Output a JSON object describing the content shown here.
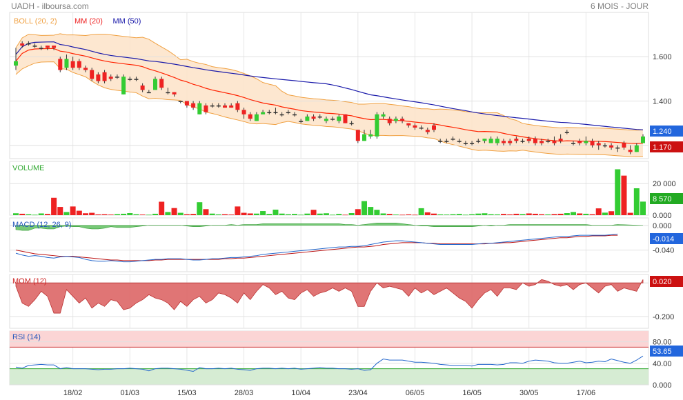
{
  "header": {
    "left": "UADH - ilboursa.com",
    "right": "6 MOIS - JOUR"
  },
  "colors": {
    "up": "#33cc33",
    "down": "#ee2222",
    "mm20": "#ff2200",
    "mm50": "#1a1aaa",
    "boll": "#f0a040",
    "bollFill": "#fde3c8",
    "macd": "#2266cc",
    "signal": "#bb1111",
    "histo": "#55bb55",
    "mom": "#dd6666",
    "rsi": "#2266cc"
  },
  "chart_data": [
    {
      "type": "candlestick",
      "panel": "price",
      "legend": [
        {
          "label": "BOLL (20, 2)",
          "color": "#f0a040"
        },
        {
          "label": "MM (20)",
          "color": "#ee2222"
        },
        {
          "label": "MM (50)",
          "color": "#1a1aaa"
        }
      ],
      "y_ticks": [
        "1.600",
        "1.400",
        "1.200"
      ],
      "y_tick_values": [
        1.6,
        1.4,
        1.2
      ],
      "ylim": [
        1.14,
        1.8
      ],
      "last_up_label": "1.240",
      "last_down_label": "1.170",
      "last_up_value": 1.24,
      "last_down_value": 1.17,
      "x_ticks": [
        "18/02",
        "01/03",
        "15/03",
        "28/03",
        "10/04",
        "23/04",
        "06/05",
        "16/05",
        "30/05",
        "17/06"
      ],
      "x_tick_index": [
        9,
        18,
        27,
        36,
        45,
        54,
        63,
        72,
        81,
        90
      ]
    },
    {
      "type": "bar",
      "panel": "volume",
      "legend": [
        {
          "label": "VOLUME",
          "color": "#33aa33"
        }
      ],
      "y_ticks": [
        "20 000",
        "0.000"
      ],
      "y_tick_values": [
        20000,
        0
      ],
      "ylim": [
        0,
        34000
      ],
      "last_label": "8 570",
      "last_value": 8570
    },
    {
      "type": "line",
      "panel": "macd",
      "legend": [
        {
          "label": "MACD (12, 26, 9)",
          "color": "#2255bb"
        }
      ],
      "y_ticks": [
        "0.000",
        "-0.040"
      ],
      "y_tick_values": [
        0,
        -0.04
      ],
      "ylim": [
        -0.075,
        0.012
      ],
      "last_label": "-0.014",
      "last_value": -0.014
    },
    {
      "type": "area",
      "panel": "momentum",
      "legend": [
        {
          "label": "MOM (12)",
          "color": "#cc2222"
        }
      ],
      "y_ticks": [
        "0.000",
        "-0.200"
      ],
      "y_tick_values": [
        0,
        -0.2
      ],
      "ylim": [
        -0.27,
        0.05
      ],
      "last_label": "0.020",
      "last_value": 0.02
    },
    {
      "type": "line",
      "panel": "rsi",
      "legend": [
        {
          "label": "RSI (14)",
          "color": "#2255bb"
        }
      ],
      "y_ticks": [
        "80.00",
        "40.00",
        "0.000"
      ],
      "y_tick_values": [
        80,
        40,
        0
      ],
      "ylim": [
        0,
        100
      ],
      "bands": {
        "overbought": 70,
        "oversold": 30
      },
      "last_label": "53.65",
      "last_value": 53.65
    }
  ],
  "series": {
    "candles": [
      [
        1.56,
        1.58,
        1.64,
        1.54
      ],
      [
        1.66,
        1.65,
        1.67,
        1.64
      ],
      [
        1.66,
        1.66,
        1.67,
        1.65
      ],
      [
        1.65,
        1.65,
        1.66,
        1.64
      ],
      [
        1.64,
        1.64,
        1.65,
        1.63
      ],
      [
        1.65,
        1.64,
        1.65,
        1.63
      ],
      [
        1.65,
        1.64,
        1.65,
        1.63
      ],
      [
        1.59,
        1.54,
        1.6,
        1.53
      ],
      [
        1.55,
        1.59,
        1.61,
        1.54
      ],
      [
        1.58,
        1.55,
        1.6,
        1.54
      ],
      [
        1.58,
        1.55,
        1.59,
        1.54
      ],
      [
        1.55,
        1.54,
        1.56,
        1.53
      ],
      [
        1.54,
        1.5,
        1.55,
        1.49
      ],
      [
        1.52,
        1.49,
        1.53,
        1.48
      ],
      [
        1.53,
        1.49,
        1.54,
        1.48
      ],
      [
        1.51,
        1.5,
        1.52,
        1.49
      ],
      [
        1.51,
        1.51,
        1.52,
        1.5
      ],
      [
        1.43,
        1.51,
        1.52,
        1.43
      ],
      [
        1.5,
        1.5,
        1.51,
        1.49
      ],
      [
        1.5,
        1.5,
        1.51,
        1.49
      ],
      [
        1.47,
        1.45,
        1.48,
        1.44
      ],
      [
        1.44,
        1.44,
        1.45,
        1.44
      ],
      [
        1.45,
        1.5,
        1.51,
        1.45
      ],
      [
        1.5,
        1.46,
        1.51,
        1.45
      ],
      [
        1.44,
        1.44,
        1.46,
        1.43
      ],
      [
        1.44,
        1.43,
        1.44,
        1.42
      ],
      [
        1.4,
        1.4,
        1.4,
        1.39
      ],
      [
        1.4,
        1.38,
        1.4,
        1.37
      ],
      [
        1.39,
        1.37,
        1.4,
        1.36
      ],
      [
        1.34,
        1.39,
        1.4,
        1.34
      ],
      [
        1.38,
        1.35,
        1.39,
        1.34
      ],
      [
        1.38,
        1.38,
        1.39,
        1.37
      ],
      [
        1.38,
        1.38,
        1.39,
        1.37
      ],
      [
        1.38,
        1.37,
        1.39,
        1.37
      ],
      [
        1.38,
        1.37,
        1.39,
        1.37
      ],
      [
        1.39,
        1.36,
        1.4,
        1.35
      ],
      [
        1.36,
        1.34,
        1.37,
        1.32
      ],
      [
        1.34,
        1.32,
        1.35,
        1.31
      ],
      [
        1.31,
        1.34,
        1.35,
        1.31
      ],
      [
        1.34,
        1.35,
        1.36,
        1.34
      ],
      [
        1.35,
        1.35,
        1.36,
        1.34
      ],
      [
        1.35,
        1.35,
        1.37,
        1.34
      ],
      [
        1.34,
        1.34,
        1.35,
        1.33
      ],
      [
        1.35,
        1.35,
        1.36,
        1.34
      ],
      [
        1.34,
        1.34,
        1.35,
        1.33
      ],
      [
        1.31,
        1.31,
        1.32,
        1.3
      ],
      [
        1.31,
        1.33,
        1.34,
        1.31
      ],
      [
        1.33,
        1.32,
        1.34,
        1.31
      ],
      [
        1.33,
        1.33,
        1.34,
        1.32
      ],
      [
        1.31,
        1.32,
        1.33,
        1.3
      ],
      [
        1.32,
        1.32,
        1.33,
        1.31
      ],
      [
        1.31,
        1.33,
        1.34,
        1.3
      ],
      [
        1.34,
        1.3,
        1.34,
        1.3
      ],
      [
        1.3,
        1.3,
        1.31,
        1.29
      ],
      [
        1.27,
        1.22,
        1.27,
        1.21
      ],
      [
        1.22,
        1.25,
        1.27,
        1.22
      ],
      [
        1.24,
        1.25,
        1.27,
        1.23
      ],
      [
        1.24,
        1.34,
        1.35,
        1.23
      ],
      [
        1.33,
        1.34,
        1.35,
        1.32
      ],
      [
        1.32,
        1.3,
        1.33,
        1.29
      ],
      [
        1.31,
        1.32,
        1.33,
        1.3
      ],
      [
        1.32,
        1.31,
        1.33,
        1.3
      ],
      [
        1.3,
        1.29,
        1.3,
        1.28
      ],
      [
        1.29,
        1.28,
        1.3,
        1.27
      ],
      [
        1.28,
        1.28,
        1.29,
        1.27
      ],
      [
        1.27,
        1.26,
        1.28,
        1.25
      ],
      [
        1.29,
        1.27,
        1.3,
        1.26
      ],
      [
        1.22,
        1.22,
        1.23,
        1.21
      ],
      [
        1.22,
        1.22,
        1.23,
        1.21
      ],
      [
        1.23,
        1.23,
        1.24,
        1.22
      ],
      [
        1.22,
        1.22,
        1.23,
        1.21
      ],
      [
        1.21,
        1.21,
        1.22,
        1.2
      ],
      [
        1.21,
        1.21,
        1.22,
        1.2
      ],
      [
        1.22,
        1.22,
        1.23,
        1.21
      ],
      [
        1.22,
        1.23,
        1.23,
        1.21
      ],
      [
        1.21,
        1.23,
        1.24,
        1.21
      ],
      [
        1.21,
        1.23,
        1.24,
        1.2
      ],
      [
        1.22,
        1.21,
        1.23,
        1.2
      ],
      [
        1.22,
        1.21,
        1.23,
        1.2
      ],
      [
        1.23,
        1.22,
        1.24,
        1.21
      ],
      [
        1.22,
        1.22,
        1.23,
        1.21
      ],
      [
        1.23,
        1.22,
        1.24,
        1.21
      ],
      [
        1.23,
        1.21,
        1.24,
        1.2
      ],
      [
        1.22,
        1.21,
        1.23,
        1.2
      ],
      [
        1.22,
        1.22,
        1.23,
        1.21
      ],
      [
        1.22,
        1.21,
        1.24,
        1.2
      ],
      [
        1.23,
        1.22,
        1.25,
        1.21
      ],
      [
        1.26,
        1.26,
        1.27,
        1.25
      ],
      [
        1.21,
        1.21,
        1.22,
        1.2
      ],
      [
        1.22,
        1.21,
        1.23,
        1.2
      ],
      [
        1.21,
        1.22,
        1.24,
        1.2
      ],
      [
        1.22,
        1.2,
        1.23,
        1.19
      ],
      [
        1.21,
        1.2,
        1.22,
        1.18
      ],
      [
        1.2,
        1.2,
        1.21,
        1.19
      ],
      [
        1.2,
        1.19,
        1.21,
        1.18
      ],
      [
        1.19,
        1.19,
        1.2,
        1.17
      ],
      [
        1.21,
        1.19,
        1.22,
        1.18
      ],
      [
        1.18,
        1.17,
        1.2,
        1.16
      ],
      [
        1.17,
        1.2,
        1.21,
        1.17
      ],
      [
        1.21,
        1.24,
        1.25,
        1.21
      ]
    ],
    "volume": [
      1200,
      900,
      600,
      300,
      1100,
      800,
      11000,
      5200,
      2000,
      5500,
      2800,
      1200,
      1500,
      500,
      600,
      400,
      700,
      900,
      1300,
      600,
      400,
      300,
      900,
      8500,
      2000,
      4500,
      1500,
      600,
      800,
      8200,
      3800,
      1000,
      500,
      600,
      400,
      5500,
      1500,
      1100,
      1000,
      2600,
      800,
      3500,
      1000,
      600,
      800,
      300,
      1000,
      3400,
      1000,
      1200,
      300,
      800,
      300,
      1300,
      3800,
      8900,
      5200,
      3400,
      1100,
      800,
      400,
      300,
      500,
      300,
      4400,
      1800,
      1000,
      500,
      400,
      600,
      800,
      300,
      600,
      1000,
      1200,
      600,
      500,
      800,
      500,
      900,
      700,
      1100,
      900,
      600,
      500,
      700,
      900,
      1300,
      2000,
      1100,
      900,
      600,
      4300,
      1600,
      2500,
      29000,
      25000,
      1500,
      17000,
      8570
    ],
    "macd": [
      -0.045,
      -0.048,
      -0.05,
      -0.049,
      -0.05,
      -0.052,
      -0.053,
      -0.051,
      -0.05,
      -0.051,
      -0.052,
      -0.055,
      -0.057,
      -0.058,
      -0.058,
      -0.057,
      -0.058,
      -0.059,
      -0.059,
      -0.058,
      -0.057,
      -0.056,
      -0.055,
      -0.055,
      -0.054,
      -0.054,
      -0.054,
      -0.055,
      -0.056,
      -0.056,
      -0.055,
      -0.054,
      -0.054,
      -0.053,
      -0.052,
      -0.052,
      -0.051,
      -0.05,
      -0.049,
      -0.047,
      -0.046,
      -0.045,
      -0.044,
      -0.043,
      -0.042,
      -0.041,
      -0.04,
      -0.039,
      -0.038,
      -0.037,
      -0.036,
      -0.035,
      -0.035,
      -0.034,
      -0.034,
      -0.033,
      -0.031,
      -0.029,
      -0.027,
      -0.026,
      -0.025,
      -0.025,
      -0.026,
      -0.027,
      -0.028,
      -0.029,
      -0.03,
      -0.031,
      -0.031,
      -0.031,
      -0.031,
      -0.031,
      -0.031,
      -0.03,
      -0.029,
      -0.029,
      -0.028,
      -0.027,
      -0.026,
      -0.025,
      -0.024,
      -0.023,
      -0.022,
      -0.021,
      -0.02,
      -0.019,
      -0.018,
      -0.018,
      -0.017,
      -0.016,
      -0.016,
      -0.016,
      -0.016,
      -0.016,
      -0.015,
      -0.014
    ],
    "signal": [
      -0.04,
      -0.042,
      -0.044,
      -0.046,
      -0.047,
      -0.048,
      -0.049,
      -0.05,
      -0.05,
      -0.05,
      -0.051,
      -0.052,
      -0.053,
      -0.054,
      -0.055,
      -0.056,
      -0.056,
      -0.057,
      -0.057,
      -0.057,
      -0.057,
      -0.057,
      -0.056,
      -0.056,
      -0.055,
      -0.055,
      -0.055,
      -0.055,
      -0.055,
      -0.055,
      -0.055,
      -0.055,
      -0.055,
      -0.054,
      -0.054,
      -0.053,
      -0.053,
      -0.052,
      -0.051,
      -0.05,
      -0.049,
      -0.048,
      -0.047,
      -0.046,
      -0.045,
      -0.044,
      -0.043,
      -0.042,
      -0.041,
      -0.04,
      -0.039,
      -0.038,
      -0.037,
      -0.036,
      -0.035,
      -0.035,
      -0.034,
      -0.033,
      -0.031,
      -0.03,
      -0.029,
      -0.028,
      -0.028,
      -0.028,
      -0.028,
      -0.029,
      -0.029,
      -0.03,
      -0.03,
      -0.03,
      -0.03,
      -0.03,
      -0.03,
      -0.03,
      -0.03,
      -0.029,
      -0.029,
      -0.028,
      -0.028,
      -0.027,
      -0.026,
      -0.025,
      -0.024,
      -0.023,
      -0.022,
      -0.021,
      -0.02,
      -0.02,
      -0.019,
      -0.018,
      -0.018,
      -0.017,
      -0.017,
      -0.017,
      -0.016,
      -0.016
    ],
    "mom": [
      -0.02,
      -0.12,
      -0.14,
      -0.1,
      -0.05,
      -0.08,
      -0.18,
      -0.18,
      -0.04,
      -0.08,
      -0.12,
      -0.09,
      -0.15,
      -0.12,
      -0.14,
      -0.1,
      -0.11,
      -0.16,
      -0.15,
      -0.12,
      -0.1,
      -0.07,
      -0.09,
      -0.1,
      -0.12,
      -0.16,
      -0.11,
      -0.14,
      -0.1,
      -0.08,
      -0.12,
      -0.1,
      -0.06,
      -0.07,
      -0.09,
      -0.12,
      -0.06,
      -0.1,
      -0.05,
      -0.01,
      -0.03,
      -0.07,
      -0.05,
      -0.09,
      -0.1,
      -0.06,
      -0.04,
      -0.08,
      -0.06,
      -0.05,
      -0.03,
      -0.05,
      -0.03,
      -0.05,
      -0.14,
      -0.14,
      -0.05,
      0.0,
      -0.03,
      -0.02,
      -0.03,
      -0.04,
      -0.08,
      -0.03,
      -0.06,
      -0.04,
      -0.07,
      -0.05,
      -0.03,
      -0.06,
      -0.09,
      -0.11,
      -0.15,
      -0.1,
      -0.06,
      -0.04,
      -0.08,
      -0.03,
      -0.03,
      -0.04,
      0.0,
      -0.02,
      -0.01,
      0.02,
      0.01,
      -0.01,
      -0.02,
      -0.01,
      -0.04,
      -0.01,
      0.0,
      -0.03,
      -0.06,
      -0.02,
      -0.01,
      -0.05,
      -0.03,
      -0.04,
      -0.05,
      0.02
    ],
    "rsi": [
      33,
      31,
      36,
      37,
      38,
      37,
      37,
      30,
      32,
      30,
      30,
      30,
      29,
      28,
      29,
      29,
      30,
      30,
      31,
      30,
      29,
      26,
      30,
      31,
      31,
      30,
      29,
      27,
      25,
      32,
      30,
      30,
      31,
      30,
      31,
      29,
      28,
      27,
      30,
      31,
      31,
      30,
      31,
      30,
      31,
      29,
      30,
      31,
      32,
      31,
      31,
      30,
      30,
      29,
      30,
      27,
      28,
      40,
      48,
      46,
      46,
      46,
      44,
      42,
      42,
      41,
      40,
      38,
      37,
      36,
      36,
      36,
      35,
      38,
      38,
      38,
      37,
      38,
      41,
      41,
      40,
      44,
      46,
      45,
      44,
      41,
      40,
      40,
      42,
      44,
      41,
      42,
      44,
      43,
      48,
      45,
      42,
      40,
      46,
      53.65
    ]
  }
}
